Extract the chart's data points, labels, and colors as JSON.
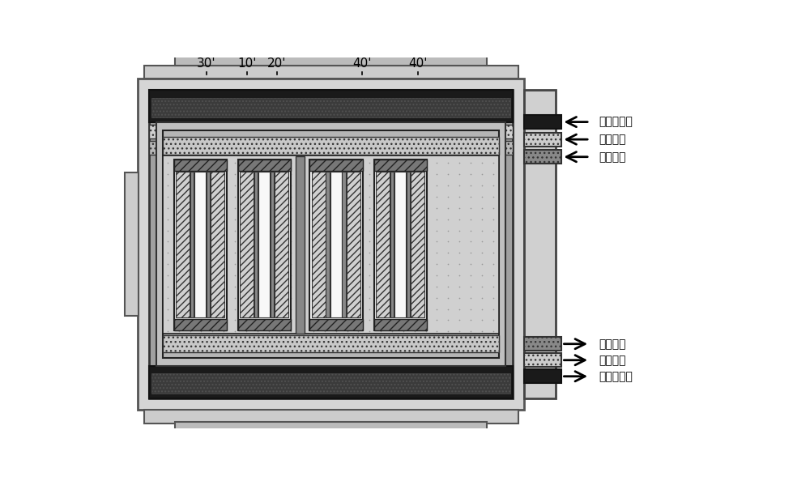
{
  "fig_width": 10.0,
  "fig_height": 5.94,
  "bg_color": "#ffffff",
  "labels_top": [
    "30'",
    "10'",
    "20'",
    "40'",
    "40'"
  ],
  "right_labels_in": [
    "冷却水进口",
    "空气进口",
    "氢气进口"
  ],
  "right_labels_out": [
    "氢气出口",
    "空气出口",
    "冷却水出口"
  ]
}
